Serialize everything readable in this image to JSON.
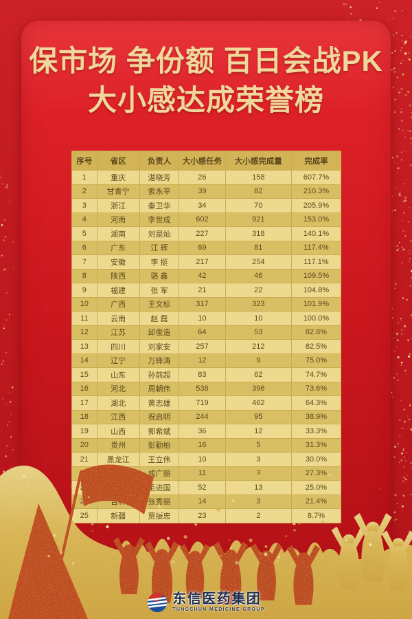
{
  "title": {
    "line1": "保市场 争份额 百日会战PK",
    "line2": "大小感达成荣誉榜"
  },
  "table": {
    "columns": [
      "序号",
      "省区",
      "负责人",
      "大小感任务",
      "大小感完成量",
      "完成率"
    ],
    "rows": [
      {
        "rank": "1",
        "province": "重庆",
        "manager": "湛晓芳",
        "task": "26",
        "completed": "158",
        "rate": "607.7%"
      },
      {
        "rank": "2",
        "province": "甘青宁",
        "manager": "索永平",
        "task": "39",
        "completed": "82",
        "rate": "210.3%"
      },
      {
        "rank": "3",
        "province": "浙江",
        "manager": "秦卫华",
        "task": "34",
        "completed": "70",
        "rate": "205.9%"
      },
      {
        "rank": "4",
        "province": "河南",
        "manager": "李世成",
        "task": "602",
        "completed": "921",
        "rate": "153.0%"
      },
      {
        "rank": "5",
        "province": "湖南",
        "manager": "刘是灿",
        "task": "227",
        "completed": "318",
        "rate": "140.1%"
      },
      {
        "rank": "6",
        "province": "广东",
        "manager": "江 辉",
        "task": "69",
        "completed": "81",
        "rate": "117.4%"
      },
      {
        "rank": "7",
        "province": "安徽",
        "manager": "李 挺",
        "task": "217",
        "completed": "254",
        "rate": "117.1%"
      },
      {
        "rank": "8",
        "province": "陕西",
        "manager": "骆 鑫",
        "task": "42",
        "completed": "46",
        "rate": "109.5%"
      },
      {
        "rank": "9",
        "province": "福建",
        "manager": "张 军",
        "task": "21",
        "completed": "22",
        "rate": "104.8%"
      },
      {
        "rank": "10",
        "province": "广西",
        "manager": "王文标",
        "task": "317",
        "completed": "323",
        "rate": "101.9%"
      },
      {
        "rank": "11",
        "province": "云南",
        "manager": "赵 磊",
        "task": "10",
        "completed": "10",
        "rate": "100.0%"
      },
      {
        "rank": "12",
        "province": "江苏",
        "manager": "邱俊造",
        "task": "64",
        "completed": "53",
        "rate": "82.8%"
      },
      {
        "rank": "13",
        "province": "四川",
        "manager": "刘家安",
        "task": "257",
        "completed": "212",
        "rate": "82.5%"
      },
      {
        "rank": "14",
        "province": "辽宁",
        "manager": "万锋涛",
        "task": "12",
        "completed": "9",
        "rate": "75.0%"
      },
      {
        "rank": "15",
        "province": "山东",
        "manager": "孙前超",
        "task": "83",
        "completed": "62",
        "rate": "74.7%"
      },
      {
        "rank": "16",
        "province": "河北",
        "manager": "周朝伟",
        "task": "538",
        "completed": "396",
        "rate": "73.6%"
      },
      {
        "rank": "17",
        "province": "湖北",
        "manager": "黄志雄",
        "task": "719",
        "completed": "462",
        "rate": "64.3%"
      },
      {
        "rank": "18",
        "province": "江西",
        "manager": "祝启明",
        "task": "244",
        "completed": "95",
        "rate": "38.9%"
      },
      {
        "rank": "19",
        "province": "山西",
        "manager": "郭希斌",
        "task": "36",
        "completed": "12",
        "rate": "33.3%"
      },
      {
        "rank": "20",
        "province": "贵州",
        "manager": "彭勤柏",
        "task": "16",
        "completed": "5",
        "rate": "31.3%"
      },
      {
        "rank": "21",
        "province": "黑龙江",
        "manager": "王立伟",
        "task": "10",
        "completed": "3",
        "rate": "30.0%"
      },
      {
        "rank": "22",
        "province": "内蒙",
        "manager": "成广丽",
        "task": "11",
        "completed": "3",
        "rate": "27.3%"
      },
      {
        "rank": "23",
        "province": "北京",
        "manager": "毛进国",
        "task": "52",
        "completed": "13",
        "rate": "25.0%"
      },
      {
        "rank": "24",
        "province": "吉林",
        "manager": "张秀丽",
        "task": "14",
        "completed": "3",
        "rate": "21.4%"
      },
      {
        "rank": "25",
        "province": "新疆",
        "manager": "贾振忠",
        "task": "23",
        "completed": "2",
        "rate": "8.7%"
      }
    ]
  },
  "logo": {
    "name": "东信医药集团",
    "subtitle": "TUNGSHUN MEDICINE GROUP"
  },
  "colors": {
    "outer_red": "#c01a20",
    "panel_red": "#cb171e",
    "title_gold": "#f0d79b",
    "table_header_bg": "#d2b456",
    "row_light": "#eeda8e",
    "row_dark": "#d9bf64",
    "table_text": "#5e481c",
    "glitter_gold": "#e2bd5c",
    "logo_blue": "#1b4f9e",
    "logo_red": "#d2342b"
  }
}
